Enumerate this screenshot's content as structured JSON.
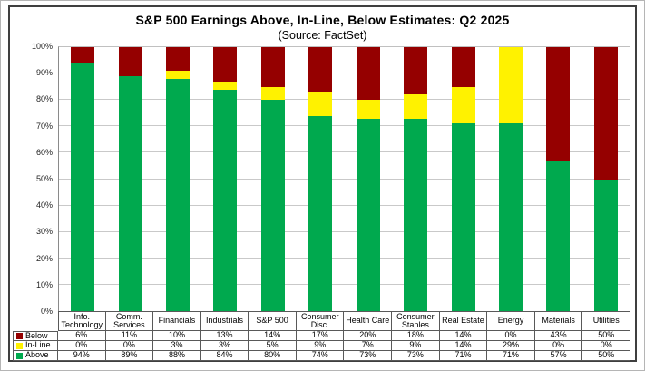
{
  "chart_data": {
    "type": "bar",
    "stacked": true,
    "title": "S&P 500 Earnings Above, In-Line, Below Estimates: Q2 2025",
    "subtitle": "(Source: FactSet)",
    "categories": [
      "Info. Technology",
      "Comm. Services",
      "Financials",
      "Industrials",
      "S&P 500",
      "Consumer Disc.",
      "Health Care",
      "Consumer Staples",
      "Real Estate",
      "Energy",
      "Materials",
      "Utilities"
    ],
    "series": [
      {
        "name": "Below",
        "color": "#950000",
        "values": [
          6,
          11,
          10,
          13,
          14,
          17,
          20,
          18,
          14,
          0,
          43,
          50
        ]
      },
      {
        "name": "In-Line",
        "color": "#FFF200",
        "values": [
          0,
          0,
          3,
          3,
          5,
          9,
          7,
          9,
          14,
          29,
          0,
          0
        ]
      },
      {
        "name": "Above",
        "color": "#00A94E",
        "values": [
          94,
          89,
          88,
          84,
          80,
          74,
          73,
          73,
          71,
          71,
          57,
          50
        ]
      }
    ],
    "value_suffix": "%",
    "ylim": [
      0,
      100
    ],
    "yticks": [
      "0%",
      "10%",
      "20%",
      "30%",
      "40%",
      "50%",
      "60%",
      "70%",
      "80%",
      "90%",
      "100%"
    ],
    "grid": true,
    "legend_position": "table-left",
    "table_row_order": [
      "Below",
      "In-Line",
      "Above"
    ]
  }
}
